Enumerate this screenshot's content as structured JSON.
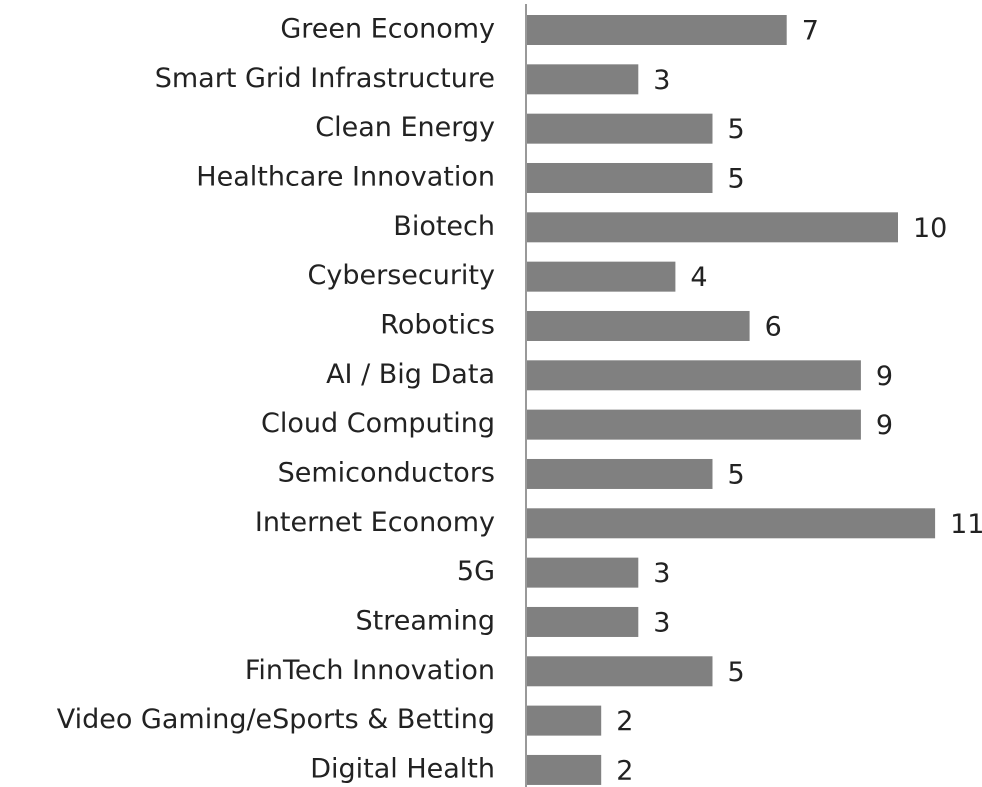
{
  "chart_data": {
    "type": "bar",
    "orientation": "horizontal",
    "categories": [
      "Green Economy",
      "Smart Grid Infrastructure",
      "Clean Energy",
      "Healthcare Innovation",
      "Biotech",
      "Cybersecurity",
      "Robotics",
      "AI / Big Data",
      "Cloud Computing",
      "Semiconductors",
      "Internet Economy",
      "5G",
      "Streaming",
      "FinTech Innovation",
      "Video Gaming/eSports & Betting",
      "Digital Health"
    ],
    "values": [
      7,
      3,
      5,
      5,
      10,
      4,
      6,
      9,
      9,
      5,
      11,
      3,
      3,
      5,
      2,
      2
    ],
    "color": "#808080"
  }
}
